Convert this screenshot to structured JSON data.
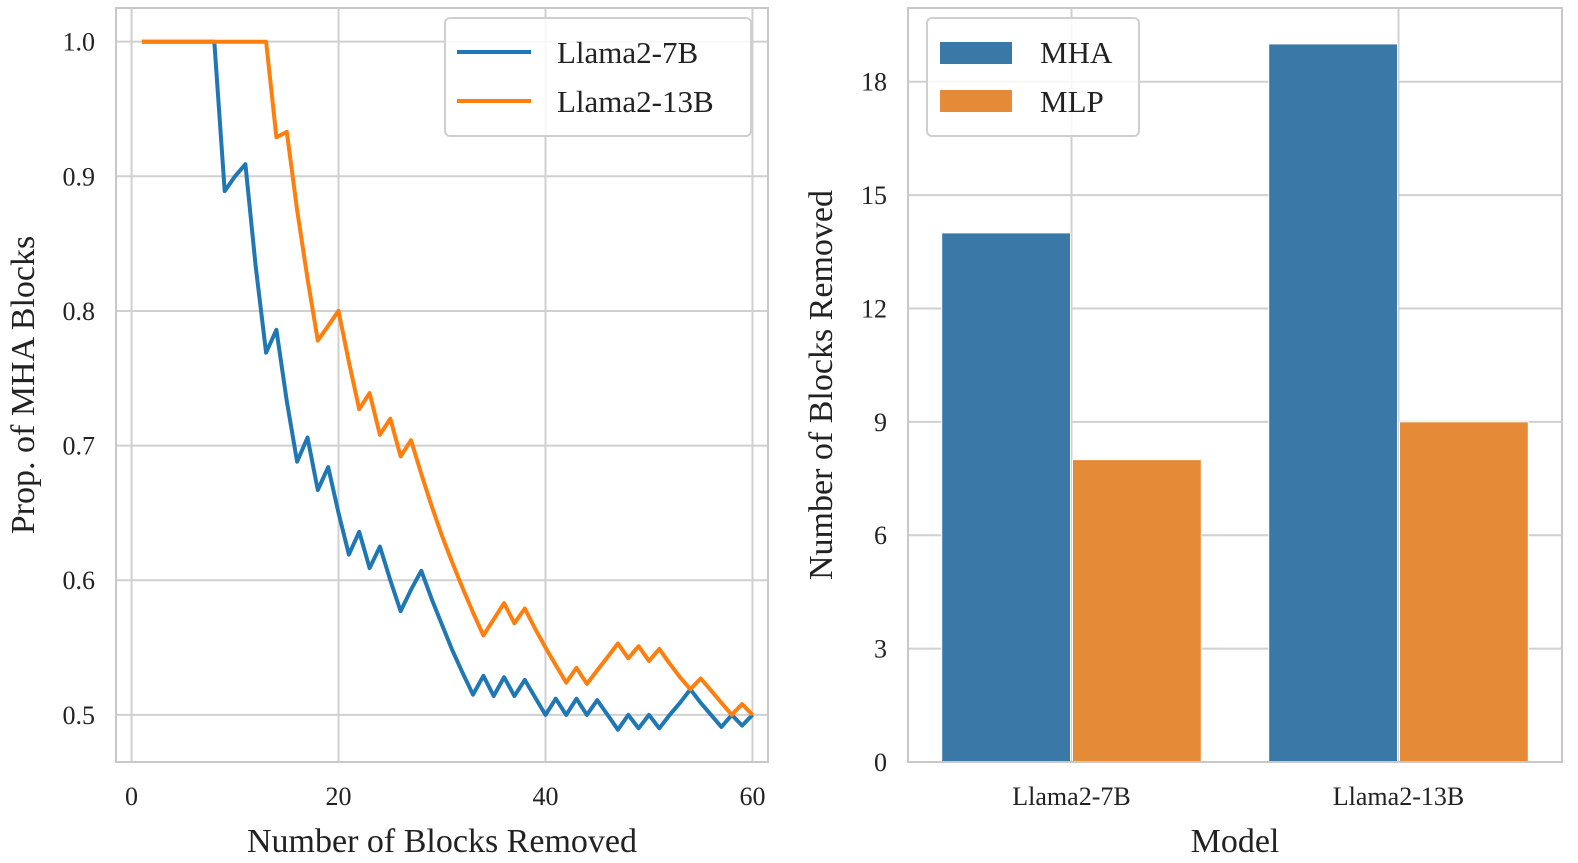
{
  "chart_data": [
    {
      "type": "line",
      "title": "",
      "xlabel": "Number of Blocks Removed",
      "ylabel": "Prop. of MHA Blocks",
      "xlim": [
        -1.5,
        61.5
      ],
      "ylim": [
        0.465,
        1.025
      ],
      "xticks": [
        0,
        20,
        40,
        60
      ],
      "xtick_labels": [
        "0",
        "20",
        "40",
        "60"
      ],
      "yticks": [
        0.5,
        0.6,
        0.7,
        0.8,
        0.9,
        1.0
      ],
      "ytick_labels": [
        "0.5",
        "0.6",
        "0.7",
        "0.8",
        "0.9",
        "1.0"
      ],
      "grid": true,
      "legend_position": "top-right",
      "series": [
        {
          "name": "Llama2-7B",
          "color": "#1f77b4",
          "x": [
            1,
            2,
            3,
            4,
            5,
            6,
            7,
            8,
            9,
            10,
            11,
            12,
            13,
            14,
            15,
            16,
            17,
            18,
            19,
            20,
            21,
            22,
            23,
            24,
            25,
            26,
            27,
            28,
            29,
            30,
            31,
            32,
            33,
            34,
            35,
            36,
            37,
            38,
            39,
            40,
            41,
            42,
            43,
            44,
            45,
            46,
            47,
            48,
            49,
            50,
            51,
            52,
            53,
            54,
            55,
            56,
            57,
            58,
            59,
            60
          ],
          "y": [
            1.0,
            1.0,
            1.0,
            1.0,
            1.0,
            1.0,
            1.0,
            1.0,
            0.889,
            0.9,
            0.909,
            0.833,
            0.769,
            0.786,
            0.733,
            0.688,
            0.706,
            0.667,
            0.684,
            0.65,
            0.619,
            0.636,
            0.609,
            0.625,
            0.6,
            0.577,
            0.593,
            0.607,
            0.586,
            0.567,
            0.548,
            0.531,
            0.515,
            0.529,
            0.514,
            0.528,
            0.514,
            0.526,
            0.513,
            0.5,
            0.512,
            0.5,
            0.512,
            0.5,
            0.511,
            0.5,
            0.489,
            0.5,
            0.49,
            0.5,
            0.49,
            0.5,
            0.509,
            0.519,
            0.509,
            0.5,
            0.491,
            0.5,
            0.492,
            0.5
          ]
        },
        {
          "name": "Llama2-13B",
          "color": "#ff7f0e",
          "x": [
            1,
            2,
            3,
            4,
            5,
            6,
            7,
            8,
            9,
            10,
            11,
            12,
            13,
            14,
            15,
            16,
            17,
            18,
            19,
            20,
            21,
            22,
            23,
            24,
            25,
            26,
            27,
            28,
            29,
            30,
            31,
            32,
            33,
            34,
            35,
            36,
            37,
            38,
            39,
            40,
            41,
            42,
            43,
            44,
            45,
            46,
            47,
            48,
            49,
            50,
            51,
            52,
            53,
            54,
            55,
            56,
            57,
            58,
            59,
            60
          ],
          "y": [
            1.0,
            1.0,
            1.0,
            1.0,
            1.0,
            1.0,
            1.0,
            1.0,
            1.0,
            1.0,
            1.0,
            1.0,
            1.0,
            0.929,
            0.933,
            0.875,
            0.824,
            0.778,
            0.789,
            0.8,
            0.762,
            0.727,
            0.739,
            0.708,
            0.72,
            0.692,
            0.704,
            0.679,
            0.655,
            0.633,
            0.613,
            0.594,
            0.576,
            0.559,
            0.571,
            0.583,
            0.568,
            0.579,
            0.564,
            0.55,
            0.537,
            0.524,
            0.535,
            0.523,
            0.533,
            0.543,
            0.553,
            0.542,
            0.551,
            0.54,
            0.549,
            0.538,
            0.528,
            0.519,
            0.527,
            0.518,
            0.509,
            0.5,
            0.508,
            0.5
          ]
        }
      ]
    },
    {
      "type": "bar",
      "title": "",
      "xlabel": "Model",
      "ylabel": "Number of Blocks Removed",
      "categories": [
        "Llama2-7B",
        "Llama2-13B"
      ],
      "ylim": [
        0,
        19.95
      ],
      "yticks": [
        0,
        3,
        6,
        9,
        12,
        15,
        18
      ],
      "ytick_labels": [
        "0",
        "3",
        "6",
        "9",
        "12",
        "15",
        "18"
      ],
      "grid": true,
      "legend_position": "top-left",
      "series": [
        {
          "name": "MHA",
          "color": "#3a78a8",
          "values": [
            14,
            19
          ]
        },
        {
          "name": "MLP",
          "color": "#e58a36",
          "values": [
            8,
            9
          ]
        }
      ]
    }
  ]
}
